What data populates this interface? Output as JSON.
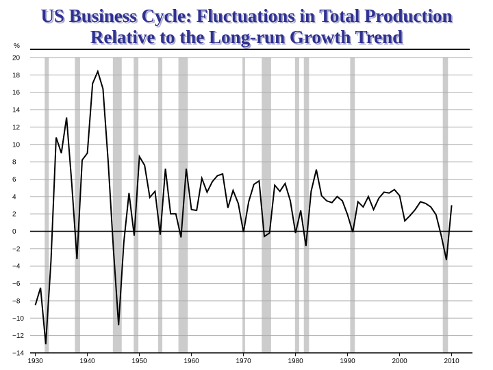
{
  "chart_data": {
    "type": "line",
    "title": "US Business Cycle: Fluctuations in Total Production Relative to the Long-run Growth Trend",
    "title_lines": [
      "US Business Cycle: Fluctuations in Total Production",
      "Relative to the Long-run Growth Trend"
    ],
    "ylabel": "%",
    "xlabel": "",
    "ylim": [
      -14,
      20
    ],
    "xlim": [
      1929,
      2014
    ],
    "yticks": [
      -14,
      -12,
      -10,
      -8,
      -6,
      -4,
      -2,
      0,
      2,
      4,
      6,
      8,
      10,
      12,
      14,
      16,
      18,
      20
    ],
    "ytick_labels": [
      "−14",
      "−12",
      "−10",
      "−8",
      "−6",
      "−4",
      "−2",
      "0",
      "2",
      "4",
      "6",
      "8",
      "10",
      "12",
      "14",
      "16",
      "18",
      "20"
    ],
    "xticks": [
      1930,
      1940,
      1950,
      1960,
      1970,
      1980,
      1990,
      2000,
      2010
    ],
    "xtick_labels": [
      "1930",
      "1940",
      "1950",
      "1960",
      "1970",
      "1980",
      "1990",
      "2000",
      "2010"
    ],
    "grid": true,
    "recessions": [
      [
        1931.8,
        1932.6
      ],
      [
        1937.6,
        1938.6
      ],
      [
        1944.9,
        1946.6
      ],
      [
        1948.9,
        1949.8
      ],
      [
        1953.6,
        1954.4
      ],
      [
        1957.5,
        1959.3
      ],
      [
        1969.8,
        1970.3
      ],
      [
        1973.5,
        1975.3
      ],
      [
        1979.9,
        1980.7
      ],
      [
        1981.6,
        1982.6
      ],
      [
        1990.5,
        1991.4
      ],
      [
        2008.3,
        2009.3
      ]
    ],
    "series": [
      {
        "x": [
          1930,
          1931,
          1932,
          1933,
          1934,
          1935,
          1936,
          1937,
          1938,
          1939,
          1940,
          1941,
          1942,
          1943,
          1944,
          1945,
          1946,
          1947,
          1948,
          1949,
          1950,
          1951,
          1952,
          1953,
          1954,
          1955,
          1956,
          1957,
          1958,
          1959,
          1960,
          1961,
          1962,
          1963,
          1964,
          1965,
          1966,
          1967,
          1968,
          1969,
          1970,
          1971,
          1972,
          1973,
          1974,
          1975,
          1976,
          1977,
          1978,
          1979,
          1980,
          1981,
          1982,
          1983,
          1984,
          1985,
          1986,
          1987,
          1988,
          1989,
          1990,
          1991,
          1992,
          1993,
          1994,
          1995,
          1996,
          1997,
          1998,
          1999,
          2000,
          2001,
          2002,
          2003,
          2004,
          2005,
          2006,
          2007,
          2008,
          2009,
          2010
        ],
        "values": [
          -8.5,
          -6.5,
          -13.0,
          -3.5,
          10.8,
          9.0,
          13.1,
          5.5,
          -3.2,
          8.2,
          9.0,
          17.0,
          18.4,
          16.4,
          8.0,
          -2.0,
          -10.8,
          -1.3,
          4.4,
          -0.5,
          8.6,
          7.6,
          3.9,
          4.6,
          -0.4,
          7.2,
          2.0,
          2.0,
          -0.7,
          7.2,
          2.5,
          2.4,
          6.1,
          4.5,
          5.7,
          6.4,
          6.6,
          2.7,
          4.7,
          3.2,
          -0.1,
          3.4,
          5.4,
          5.8,
          -0.6,
          -0.2,
          5.3,
          4.6,
          5.5,
          3.5,
          -0.2,
          2.4,
          -1.7,
          4.6,
          7.1,
          4.1,
          3.5,
          3.3,
          4.0,
          3.5,
          1.9,
          -0.1,
          3.4,
          2.8,
          4.0,
          2.5,
          3.8,
          4.5,
          4.4,
          4.8,
          4.1,
          1.2,
          1.8,
          2.5,
          3.4,
          3.2,
          2.8,
          1.9,
          -0.5,
          -3.3,
          3.0
        ]
      }
    ]
  },
  "colors": {
    "title": "#2f3192",
    "title_shadow": "#a9a9c8",
    "recession_band": "#cccccc",
    "grid": "#aaaaaa",
    "line": "#000000"
  }
}
